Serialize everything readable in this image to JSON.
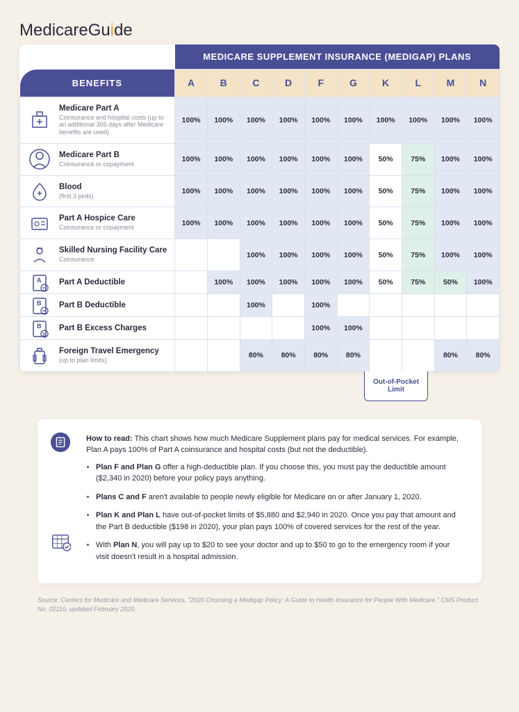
{
  "logo": {
    "pre": "Medicare",
    "accent_char_index": 11,
    "text": "MedicareGuide"
  },
  "table": {
    "title": "MEDICARE SUPPLEMENT INSURANCE (MEDIGAP) PLANS",
    "benefits_header": "BENEFITS",
    "plans": [
      "A",
      "B",
      "C",
      "D",
      "F",
      "G",
      "K",
      "L",
      "M",
      "N"
    ],
    "header_bg": "#f5e3c8",
    "header_fg": "#4a4e94",
    "title_bg": "#4a4e94",
    "cell_border": "#d9e0ef",
    "cell_bg_full": "#e2e8f3",
    "cell_bg_partial": "#dff0e9",
    "rows": [
      {
        "title": "Medicare Part A",
        "sub": "Coinsurance and hospital costs (up to an additional 365 days after Medicare benefits are used)",
        "vals": [
          "100%",
          "100%",
          "100%",
          "100%",
          "100%",
          "100%",
          "100%",
          "100%",
          "100%",
          "100%"
        ]
      },
      {
        "title": "Medicare Part B",
        "sub": "Coinsurance or copayment",
        "vals": [
          "100%",
          "100%",
          "100%",
          "100%",
          "100%",
          "100%",
          "50%",
          "75%",
          "100%",
          "100%"
        ]
      },
      {
        "title": "Blood",
        "sub": "(first 3 pints)",
        "vals": [
          "100%",
          "100%",
          "100%",
          "100%",
          "100%",
          "100%",
          "50%",
          "75%",
          "100%",
          "100%"
        ]
      },
      {
        "title": "Part A Hospice Care",
        "sub": "Coinsurance or copayment",
        "vals": [
          "100%",
          "100%",
          "100%",
          "100%",
          "100%",
          "100%",
          "50%",
          "75%",
          "100%",
          "100%"
        ]
      },
      {
        "title": "Skilled Nursing Facility Care",
        "sub": "Coinsurance",
        "vals": [
          "",
          "",
          "100%",
          "100%",
          "100%",
          "100%",
          "50%",
          "75%",
          "100%",
          "100%"
        ]
      },
      {
        "title": "Part A Deductible",
        "sub": "",
        "vals": [
          "",
          "100%",
          "100%",
          "100%",
          "100%",
          "100%",
          "50%",
          "75%",
          "50%",
          "100%"
        ]
      },
      {
        "title": "Part B Deductible",
        "sub": "",
        "vals": [
          "",
          "",
          "100%",
          "",
          "100%",
          "",
          "",
          "",
          "",
          ""
        ]
      },
      {
        "title": "Part B Excess Charges",
        "sub": "",
        "vals": [
          "",
          "",
          "",
          "",
          "100%",
          "100%",
          "",
          "",
          "",
          ""
        ]
      },
      {
        "title": "Foreign Travel Emergency",
        "sub": "(up to plan limits)",
        "vals": [
          "",
          "",
          "80%",
          "80%",
          "80%",
          "80%",
          "",
          "",
          "80%",
          "80%"
        ]
      }
    ],
    "oop_label": "Out-of-Pocket Limit"
  },
  "notes": {
    "how_to_read_label": "How to read:",
    "how_to_read_text": " This chart shows how much Medicare Supplement plans pay for medical services. For example, Plan A pays 100% of Part A coinsurance and hospital costs (but not the deductible).",
    "bullets": [
      {
        "b": "Plan F and Plan G",
        "t": " offer a high-deductible plan. If you choose this, you must pay the deductible amount ($2,340 in 2020) before your policy pays anything."
      },
      {
        "b": "Plans C and F",
        "t": " aren't available to people newly eligible for Medicare on or after January 1, 2020."
      },
      {
        "b": "Plan K and Plan L",
        "t": " have out-of-pocket limits of $5,880 and $2,940 in 2020. Once you pay that amount and the Part B deductible ($198 in 2020), your plan pays 100% of covered services for the rest of the year."
      },
      {
        "b": "Plan N",
        "t": ", you will pay up to $20 to see your doctor and up to $50 to go to the emergency room if your visit doesn't result in a hospital admission.",
        "pre": "With "
      }
    ]
  },
  "source": "Source: Centers for Medicare and Medicare Services, \"2020 Choosing a Medigap Policy: A Guide to Health Insurance for People With Medicare.\" CMS Product No. 02110, updated February 2020.",
  "colors": {
    "brand": "#4a4e94",
    "accent": "#e8a23a",
    "bg": "#f5f0e8"
  }
}
